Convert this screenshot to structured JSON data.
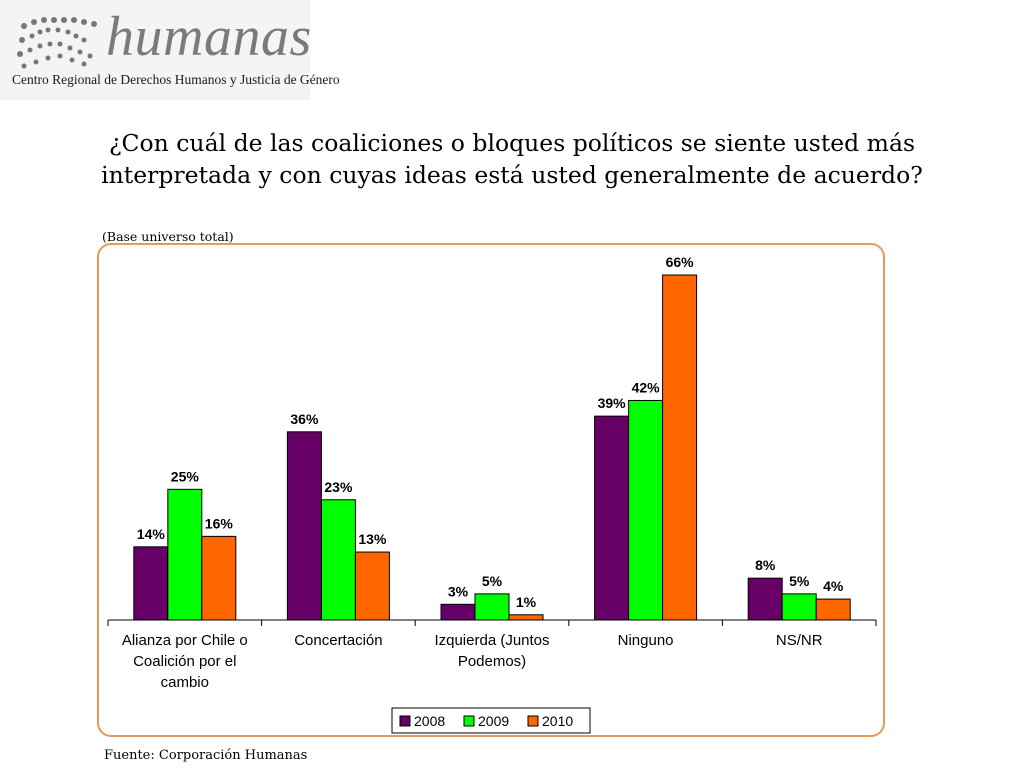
{
  "header": {
    "logo_word": "humanas",
    "logo_org": "Centro Regional de Derechos Humanos y Justicia de Género"
  },
  "question": "¿Con cuál de las coaliciones o bloques políticos se siente usted más interpretada y con cuyas ideas está usted generalmente de acuerdo?",
  "base_note": "(Base universo total)",
  "source": "Fuente: Corporación Humanas",
  "colors": {
    "2008": "#660066",
    "2009": "#00ff00",
    "2010": "#ff6600",
    "frame": "#e39a5a"
  },
  "chart_data": {
    "type": "bar",
    "categories": [
      [
        "Alianza por Chile o",
        "Coalición por el",
        "cambio"
      ],
      [
        "Concertación"
      ],
      [
        "Izquierda (Juntos",
        "Podemos)"
      ],
      [
        "Ninguno"
      ],
      [
        "NS/NR"
      ]
    ],
    "series": [
      {
        "name": "2008",
        "values": [
          14,
          36,
          3,
          39,
          8
        ],
        "labels": [
          "14%",
          "36%",
          "3%",
          "39%",
          "8%"
        ]
      },
      {
        "name": "2009",
        "values": [
          25,
          23,
          5,
          42,
          5
        ],
        "labels": [
          "25%",
          "23%",
          "5%",
          "42%",
          "5%"
        ]
      },
      {
        "name": "2010",
        "values": [
          16,
          13,
          1,
          66,
          4
        ],
        "labels": [
          "16%",
          "13%",
          "1%",
          "66%",
          "4%"
        ]
      }
    ],
    "ylim": [
      0,
      66
    ],
    "grid": false,
    "legend": "bottom"
  }
}
